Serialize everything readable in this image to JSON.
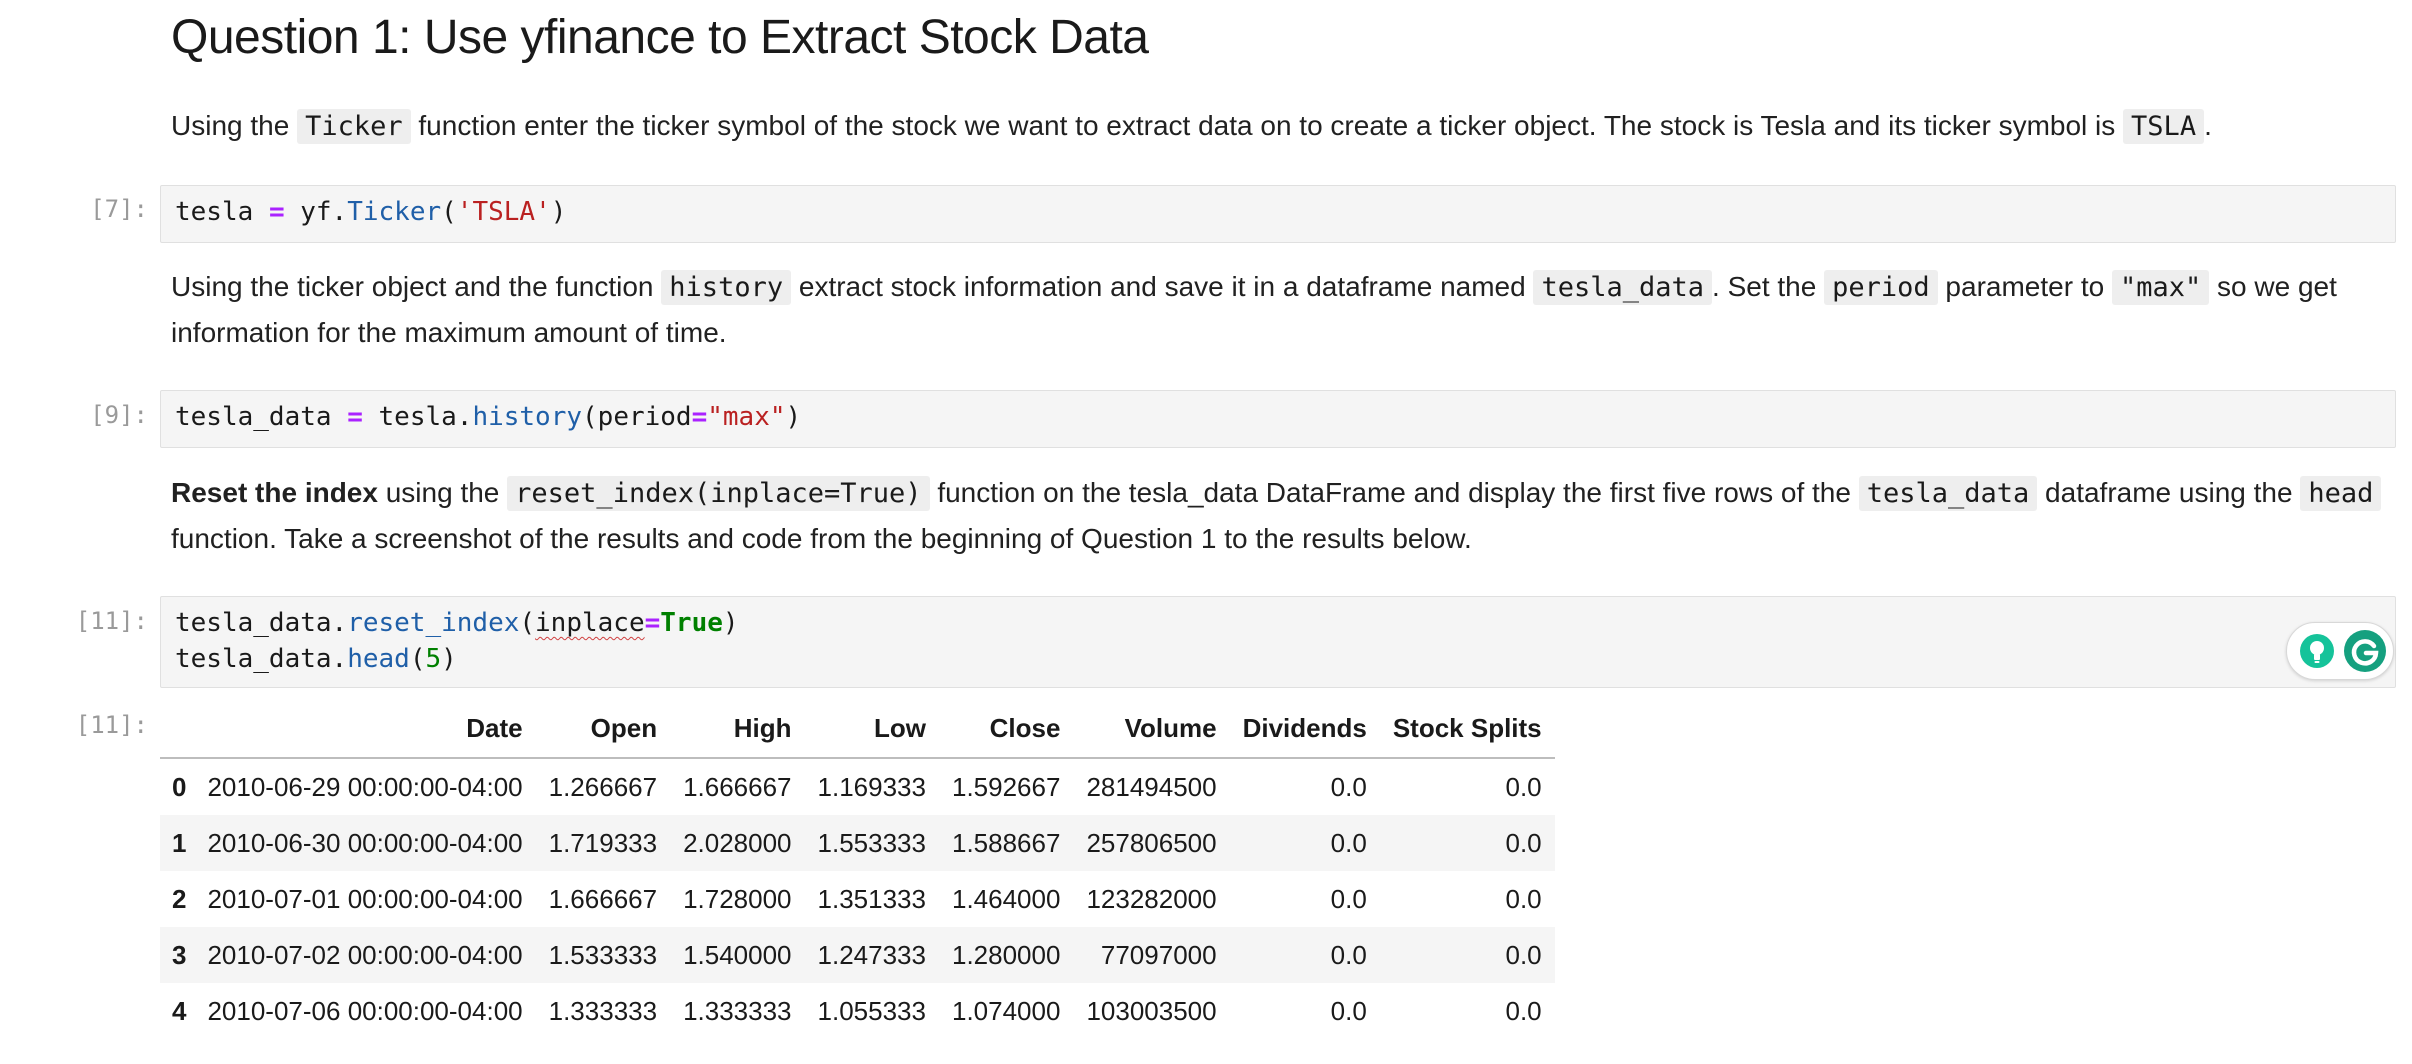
{
  "heading": "Question 1: Use yfinance to Extract Stock Data",
  "para1": {
    "t1": "Using the ",
    "c1": "Ticker",
    "t2": " function enter the ticker symbol of the stock we want to extract data on to create a ticker object. The stock is Tesla and its ticker symbol is ",
    "c2": "TSLA",
    "t3": "."
  },
  "cell1": {
    "prompt": "[7]:",
    "var": "tesla",
    "op": "=",
    "obj": "yf.",
    "fn": "Ticker",
    "open": "(",
    "str": "'TSLA'",
    "close": ")"
  },
  "para2": {
    "t1": "Using the ticker object and the function ",
    "c1": "history",
    "t2": " extract stock information and save it in a dataframe named ",
    "c2": "tesla_data",
    "t3": ". Set the ",
    "c3": "period",
    "t4": " parameter to ",
    "c4": "\"max\"",
    "t5": " so we get information for the maximum amount of time."
  },
  "cell2": {
    "prompt": "[9]:",
    "var": "tesla_data",
    "op": "=",
    "obj": "tesla.",
    "fn": "history",
    "open": "(period",
    "op2": "=",
    "str": "\"max\"",
    "close": ")"
  },
  "para3": {
    "bold": "Reset the index",
    "t1": " using the ",
    "c1": "reset_index(inplace=True)",
    "t2": " function on the tesla_data DataFrame and display the first five rows of the ",
    "c2": "tesla_data",
    "t3": " dataframe using the ",
    "c3": "head",
    "t4": " function. Take a screenshot of the results and code from the beginning of Question 1 to the results below."
  },
  "cell3": {
    "prompt": "[11]:",
    "l1_obj": "tesla_data.",
    "l1_fn": "reset_index",
    "l1_open": "(",
    "l1_arg": "inplace",
    "l1_op": "=",
    "l1_kw": "True",
    "l1_close": ")",
    "l2_obj": "tesla_data.",
    "l2_fn": "head",
    "l2_open": "(",
    "l2_num": "5",
    "l2_close": ")"
  },
  "output": {
    "prompt": "[11]:",
    "columns": [
      "",
      "Date",
      "Open",
      "High",
      "Low",
      "Close",
      "Volume",
      "Dividends",
      "Stock Splits"
    ],
    "rows": [
      [
        "0",
        "2010-06-29 00:00:00-04:00",
        "1.266667",
        "1.666667",
        "1.169333",
        "1.592667",
        "281494500",
        "0.0",
        "0.0"
      ],
      [
        "1",
        "2010-06-30 00:00:00-04:00",
        "1.719333",
        "2.028000",
        "1.553333",
        "1.588667",
        "257806500",
        "0.0",
        "0.0"
      ],
      [
        "2",
        "2010-07-01 00:00:00-04:00",
        "1.666667",
        "1.728000",
        "1.351333",
        "1.464000",
        "123282000",
        "0.0",
        "0.0"
      ],
      [
        "3",
        "2010-07-02 00:00:00-04:00",
        "1.533333",
        "1.540000",
        "1.247333",
        "1.280000",
        "77097000",
        "0.0",
        "0.0"
      ],
      [
        "4",
        "2010-07-06 00:00:00-04:00",
        "1.333333",
        "1.333333",
        "1.055333",
        "1.074000",
        "103003500",
        "0.0",
        "0.0"
      ]
    ]
  },
  "icons": {
    "grammarly_suggestion": "lightbulb-icon",
    "grammarly_logo": "grammarly-g-icon"
  },
  "colors": {
    "code_bg": "#f5f5f5",
    "operator": "#aa22ff",
    "function": "#1f5fa8",
    "string": "#ba2121",
    "keyword": "#008000",
    "grammarly_green": "#15c39a"
  }
}
